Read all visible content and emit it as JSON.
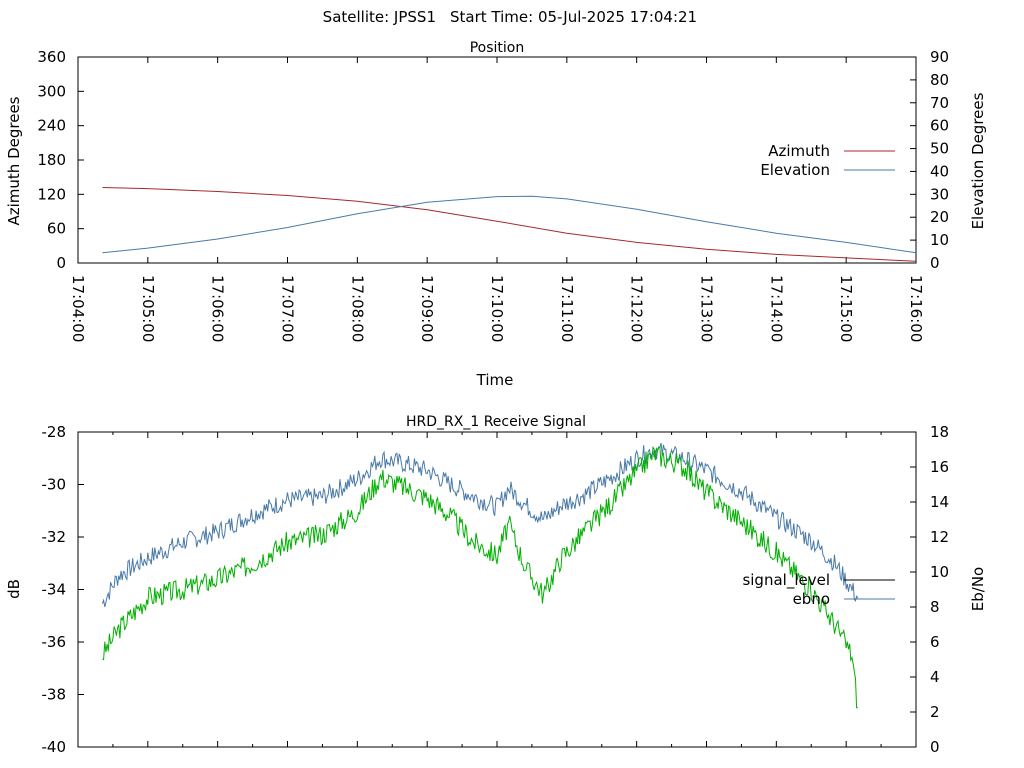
{
  "header": {
    "satellite_label": "Satellite: JPSS1",
    "start_time_label": "Start Time: 05-Jul-2025 17:04:21"
  },
  "colors": {
    "azimuth": "#a52a2a",
    "elevation": "#4a7aa8",
    "signal_level": "#00b000",
    "ebno": "#4a7aa8",
    "signal_level_legend": "#000000",
    "frame": "#000000"
  },
  "chart_data": [
    {
      "type": "line",
      "title": "Position",
      "xlabel": "Time",
      "ylabel": "Azimuth Degrees",
      "y2label": "Elevation Degrees",
      "xlim": [
        "17:04:00",
        "17:16:00"
      ],
      "xticks": [
        "17:04:00",
        "17:05:00",
        "17:06:00",
        "17:07:00",
        "17:08:00",
        "17:09:00",
        "17:10:00",
        "17:11:00",
        "17:12:00",
        "17:13:00",
        "17:14:00",
        "17:15:00",
        "17:16:00"
      ],
      "ylim": [
        0,
        360
      ],
      "yticks": [
        0,
        60,
        120,
        180,
        240,
        300,
        360
      ],
      "y2lim": [
        0,
        90
      ],
      "y2ticks": [
        0,
        10,
        20,
        30,
        40,
        50,
        60,
        70,
        80,
        90
      ],
      "grid": false,
      "legend_position": "right",
      "series": [
        {
          "name": "Azimuth",
          "axis": "left",
          "points": [
            [
              "17:04:21",
              132
            ],
            [
              "17:05:00",
              130
            ],
            [
              "17:06:00",
              125
            ],
            [
              "17:07:00",
              118
            ],
            [
              "17:08:00",
              108
            ],
            [
              "17:09:00",
              93
            ],
            [
              "17:10:00",
              73
            ],
            [
              "17:11:00",
              52
            ],
            [
              "17:12:00",
              36
            ],
            [
              "17:13:00",
              24
            ],
            [
              "17:14:00",
              15
            ],
            [
              "17:15:00",
              9
            ],
            [
              "17:16:00",
              3
            ]
          ]
        },
        {
          "name": "Elevation",
          "axis": "right",
          "points": [
            [
              "17:04:21",
              4.5
            ],
            [
              "17:05:00",
              6.5
            ],
            [
              "17:06:00",
              10.5
            ],
            [
              "17:07:00",
              15.5
            ],
            [
              "17:08:00",
              21.5
            ],
            [
              "17:09:00",
              26.5
            ],
            [
              "17:10:00",
              29
            ],
            [
              "17:10:30",
              29.2
            ],
            [
              "17:11:00",
              28
            ],
            [
              "17:12:00",
              23.5
            ],
            [
              "17:13:00",
              18
            ],
            [
              "17:14:00",
              13
            ],
            [
              "17:15:00",
              9
            ],
            [
              "17:16:00",
              4.5
            ]
          ]
        }
      ]
    },
    {
      "type": "line",
      "title": "HRD_RX_1 Receive Signal",
      "xlabel": "",
      "ylabel": "dB",
      "y2label": "Eb/No",
      "xlim": [
        "17:04:00",
        "17:16:00"
      ],
      "ylim": [
        -40,
        -28
      ],
      "yticks": [
        -40,
        -38,
        -36,
        -34,
        -32,
        -30,
        -28
      ],
      "y2lim": [
        0,
        18
      ],
      "y2ticks": [
        0,
        2,
        4,
        6,
        8,
        10,
        12,
        14,
        16,
        18
      ],
      "grid": false,
      "legend_position": "right",
      "series": [
        {
          "name": "signal_level",
          "axis": "left",
          "points": [
            [
              "17:04:21",
              -36.5
            ],
            [
              "17:04:35",
              -35.5
            ],
            [
              "17:05:00",
              -34.3
            ],
            [
              "17:05:30",
              -34.0
            ],
            [
              "17:06:00",
              -33.6
            ],
            [
              "17:06:30",
              -33.0
            ],
            [
              "17:07:00",
              -32.2
            ],
            [
              "17:07:30",
              -31.9
            ],
            [
              "17:08:00",
              -31.0
            ],
            [
              "17:08:20",
              -29.7
            ],
            [
              "17:08:40",
              -30.1
            ],
            [
              "17:09:00",
              -30.5
            ],
            [
              "17:09:20",
              -31.2
            ],
            [
              "17:09:40",
              -32.2
            ],
            [
              "17:10:00",
              -32.7
            ],
            [
              "17:10:10",
              -31.5
            ],
            [
              "17:10:25",
              -33.2
            ],
            [
              "17:10:40",
              -34.2
            ],
            [
              "17:10:55",
              -32.8
            ],
            [
              "17:11:15",
              -31.8
            ],
            [
              "17:11:40",
              -30.6
            ],
            [
              "17:12:00",
              -29.5
            ],
            [
              "17:12:15",
              -28.8
            ],
            [
              "17:12:40",
              -29.3
            ],
            [
              "17:13:00",
              -30.3
            ],
            [
              "17:13:30",
              -31.4
            ],
            [
              "17:14:00",
              -32.6
            ],
            [
              "17:14:30",
              -34.0
            ],
            [
              "17:14:50",
              -35.3
            ],
            [
              "17:15:05",
              -36.5
            ],
            [
              "17:15:10",
              -38.5
            ]
          ]
        },
        {
          "name": "ebno",
          "axis": "right",
          "points": [
            [
              "17:04:21",
              8.2
            ],
            [
              "17:04:35",
              9.8
            ],
            [
              "17:05:00",
              10.8
            ],
            [
              "17:05:30",
              11.7
            ],
            [
              "17:06:00",
              12.3
            ],
            [
              "17:06:30",
              13.3
            ],
            [
              "17:07:00",
              14.1
            ],
            [
              "17:07:30",
              14.3
            ],
            [
              "17:08:00",
              15.3
            ],
            [
              "17:08:20",
              16.5
            ],
            [
              "17:08:40",
              16.2
            ],
            [
              "17:09:00",
              15.8
            ],
            [
              "17:09:20",
              15.0
            ],
            [
              "17:09:40",
              14.3
            ],
            [
              "17:10:00",
              13.7
            ],
            [
              "17:10:10",
              14.8
            ],
            [
              "17:10:25",
              13.8
            ],
            [
              "17:10:40",
              13.0
            ],
            [
              "17:10:55",
              13.8
            ],
            [
              "17:11:15",
              14.4
            ],
            [
              "17:11:40",
              15.5
            ],
            [
              "17:12:00",
              16.5
            ],
            [
              "17:12:15",
              17.0
            ],
            [
              "17:12:40",
              16.5
            ],
            [
              "17:13:00",
              15.8
            ],
            [
              "17:13:30",
              14.6
            ],
            [
              "17:14:00",
              13.1
            ],
            [
              "17:14:30",
              11.8
            ],
            [
              "17:14:50",
              10.5
            ],
            [
              "17:15:05",
              9.0
            ],
            [
              "17:15:10",
              8.5
            ]
          ]
        }
      ]
    }
  ]
}
